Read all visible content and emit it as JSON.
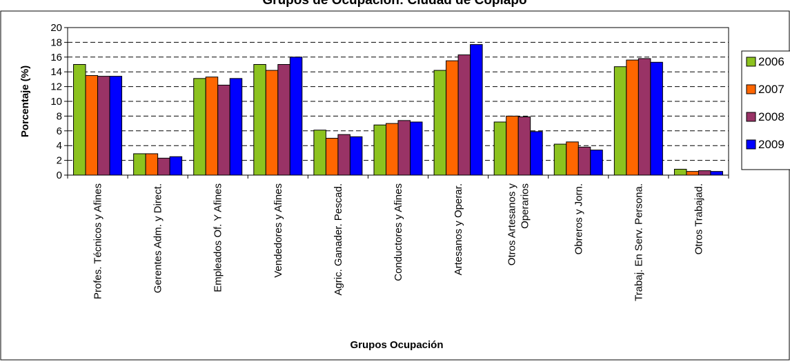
{
  "chart_data": {
    "type": "bar",
    "title": "Grupos de Ocupación: Ciudad de Copiapó",
    "xlabel": "Grupos Ocupación",
    "ylabel": "Porcentaje (%)",
    "ylim": [
      0,
      20
    ],
    "yticks": [
      0,
      2,
      4,
      6,
      8,
      10,
      12,
      14,
      16,
      18,
      20
    ],
    "grid": true,
    "legend_position": "right",
    "categories": [
      "Profes. Técnicos y Afines",
      "Gerentes Adm. y Direct.",
      "Empleados Of. Y Afines",
      "Vendedores y Afines",
      "Agric. Ganader. Pescad.",
      "Conductores y Afines",
      "Artesanos y Operar.",
      "Otros Artesanos y Operarios",
      "Obreros y Jorn.",
      "Trabaj. En Serv. Persona.",
      "Otros Trabajad."
    ],
    "series": [
      {
        "name": "2006",
        "color": "#8cc21f",
        "values": [
          15.0,
          2.9,
          13.1,
          15.0,
          6.1,
          6.8,
          14.2,
          7.2,
          4.2,
          14.7,
          0.8
        ]
      },
      {
        "name": "2007",
        "color": "#ff6600",
        "values": [
          13.5,
          2.9,
          13.3,
          14.2,
          5.0,
          7.0,
          15.5,
          8.0,
          4.5,
          15.6,
          0.5
        ]
      },
      {
        "name": "2008",
        "color": "#993366",
        "values": [
          13.4,
          2.3,
          12.2,
          15.0,
          5.5,
          7.4,
          16.3,
          7.9,
          3.8,
          15.8,
          0.6
        ]
      },
      {
        "name": "2009",
        "color": "#0000ff",
        "values": [
          13.4,
          2.5,
          13.1,
          16.0,
          5.2,
          7.2,
          17.7,
          5.9,
          3.4,
          15.3,
          0.5
        ]
      }
    ]
  }
}
